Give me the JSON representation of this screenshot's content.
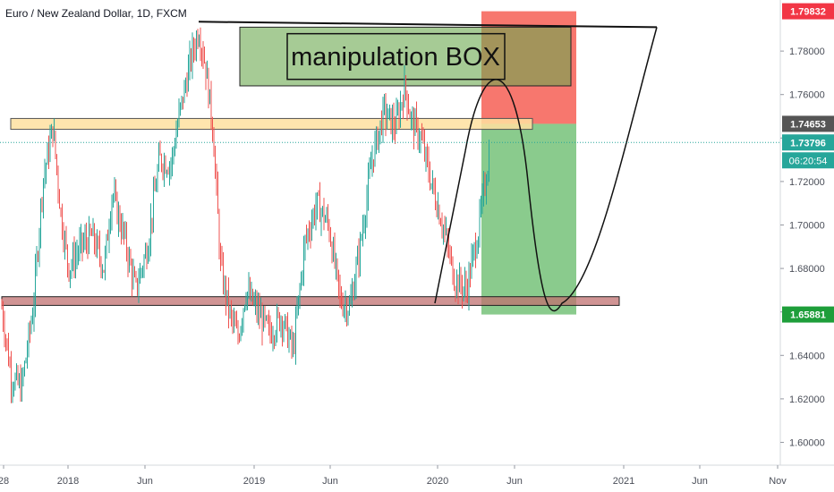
{
  "header": {
    "title": "Euro / New Zealand Dollar, 1D, FXCM"
  },
  "colors": {
    "up": "#26a69a",
    "down": "#ef5350",
    "stop_zone": "#f44336",
    "target_zone": "#4caf50",
    "resistance_band": "#ffe0a0",
    "support_band": "#c07070",
    "manipulation_box": "#6aa84f"
  },
  "chart_data": {
    "type": "candlestick",
    "title": "Euro / New Zealand Dollar, 1D, FXCM",
    "ylim": [
      1.5895,
      1.8035
    ],
    "y_ticks": [
      1.6,
      1.62,
      1.64,
      1.66,
      1.68,
      1.7,
      1.72,
      1.74,
      1.76,
      1.78
    ],
    "y_tick_labels": [
      "1.60000",
      "1.62000",
      "1.64000",
      "1.66000",
      "1.68000",
      "1.70000",
      "1.72000",
      "1.74000",
      "1.76000",
      "1.78000"
    ],
    "x_ticks": [
      "28",
      "2018",
      "Jun",
      "2019",
      "Jun",
      "2020",
      "Jun",
      "2021",
      "Jun",
      "Nov"
    ],
    "price_labels": [
      {
        "value": 1.79832,
        "label": "1.79832",
        "kind": "stop"
      },
      {
        "value": 1.74653,
        "label": "1.74653",
        "kind": "entry"
      },
      {
        "value": 1.73796,
        "label": "1.73796",
        "kind": "last"
      },
      {
        "value": 1.65881,
        "label": "1.65881",
        "kind": "target"
      }
    ],
    "countdown": "06:20:54",
    "last_price": 1.73796,
    "annotations": {
      "manipulation_text": "manipulation BOX",
      "resistance_line": 1.792,
      "resistance_band": [
        1.744,
        1.749
      ],
      "support_band": [
        1.663,
        1.667
      ],
      "manipulation_box": [
        1.764,
        1.791
      ],
      "risk_stop_zone": [
        1.74653,
        1.79832
      ],
      "risk_target_zone": [
        1.65881,
        1.74653
      ]
    },
    "price_path": [
      [
        0,
        1.662
      ],
      [
        0.012,
        1.63
      ],
      [
        0.025,
        1.625
      ],
      [
        0.04,
        1.662
      ],
      [
        0.052,
        1.72
      ],
      [
        0.065,
        1.745
      ],
      [
        0.075,
        1.705
      ],
      [
        0.085,
        1.68
      ],
      [
        0.1,
        1.69
      ],
      [
        0.115,
        1.695
      ],
      [
        0.13,
        1.68
      ],
      [
        0.14,
        1.715
      ],
      [
        0.155,
        1.695
      ],
      [
        0.17,
        1.67
      ],
      [
        0.185,
        1.69
      ],
      [
        0.2,
        1.73
      ],
      [
        0.215,
        1.728
      ],
      [
        0.225,
        1.75
      ],
      [
        0.24,
        1.776
      ],
      [
        0.25,
        1.79
      ],
      [
        0.258,
        1.775
      ],
      [
        0.268,
        1.745
      ],
      [
        0.278,
        1.68
      ],
      [
        0.29,
        1.658
      ],
      [
        0.3,
        1.648
      ],
      [
        0.31,
        1.67
      ],
      [
        0.325,
        1.66
      ],
      [
        0.34,
        1.65
      ],
      [
        0.355,
        1.658
      ],
      [
        0.37,
        1.642
      ],
      [
        0.385,
        1.692
      ],
      [
        0.4,
        1.71
      ],
      [
        0.415,
        1.7
      ],
      [
        0.43,
        1.665
      ],
      [
        0.442,
        1.662
      ],
      [
        0.455,
        1.69
      ],
      [
        0.47,
        1.73
      ],
      [
        0.485,
        1.752
      ],
      [
        0.5,
        1.745
      ],
      [
        0.512,
        1.764
      ],
      [
        0.52,
        1.748
      ],
      [
        0.532,
        1.74
      ],
      [
        0.545,
        1.72
      ],
      [
        0.56,
        1.7
      ],
      [
        0.575,
        1.675
      ],
      [
        0.59,
        1.67
      ],
      [
        0.605,
        1.697
      ],
      [
        0.62,
        1.735
      ]
    ]
  }
}
